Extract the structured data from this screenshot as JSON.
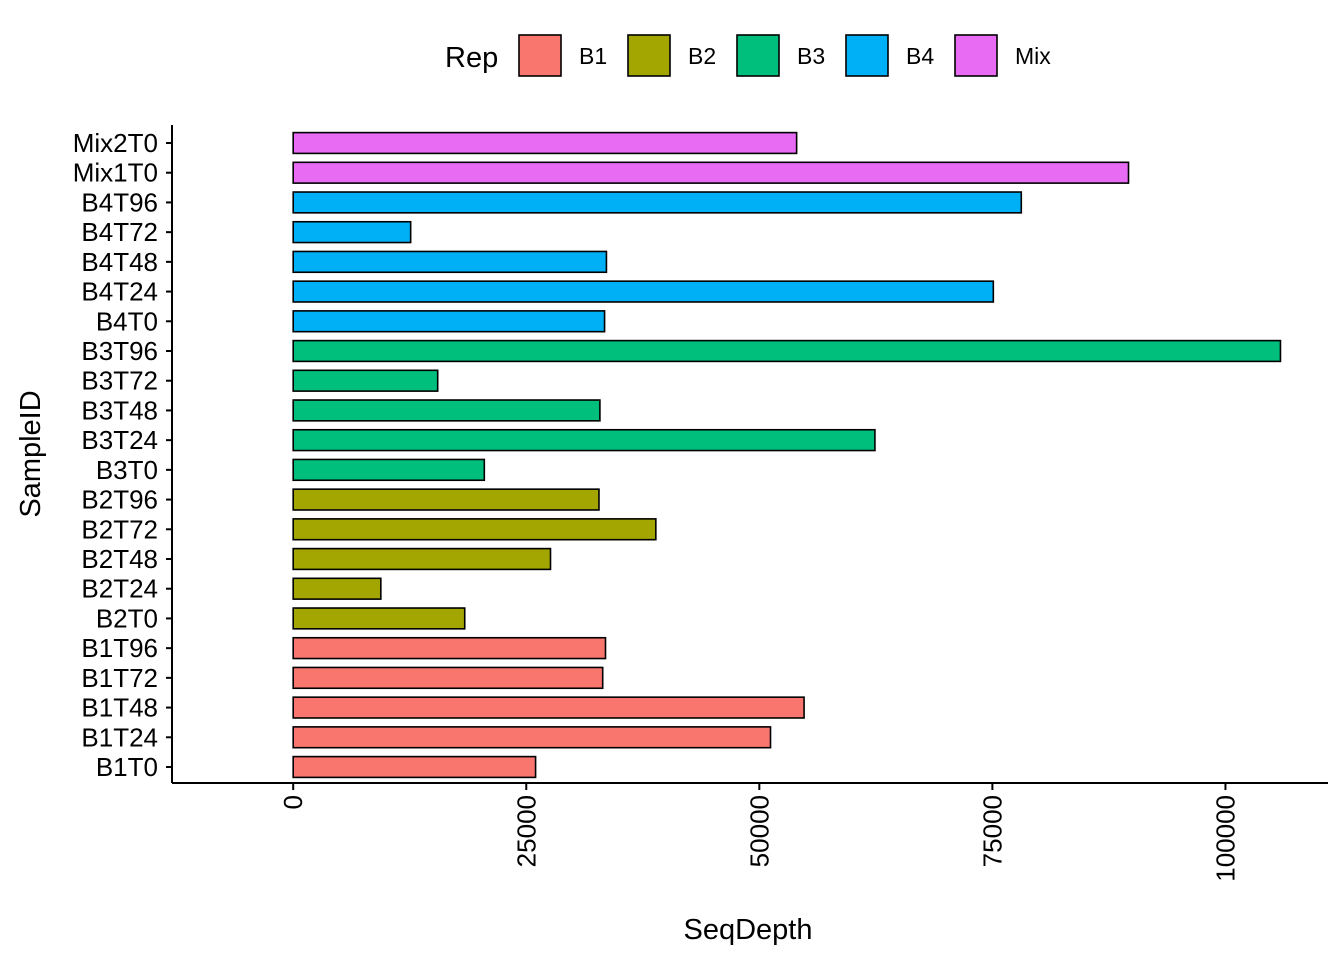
{
  "chart_data": {
    "type": "bar",
    "orientation": "horizontal",
    "title": "",
    "xlabel": "SeqDepth",
    "ylabel": "SampleID",
    "xlim": [
      -13000,
      111000
    ],
    "xticks": [
      0,
      25000,
      50000,
      75000,
      100000
    ],
    "xtick_labels": [
      "0",
      "25000",
      "50000",
      "75000",
      "100000"
    ],
    "grid": false,
    "legend": {
      "title": "Rep",
      "position": "top",
      "entries": [
        {
          "name": "B1",
          "color": "#F8766D"
        },
        {
          "name": "B2",
          "color": "#A3A500"
        },
        {
          "name": "B3",
          "color": "#00BF7D"
        },
        {
          "name": "B4",
          "color": "#00B0F6"
        },
        {
          "name": "Mix",
          "color": "#E76BF3"
        }
      ]
    },
    "categories": [
      "B1T0",
      "B1T24",
      "B1T48",
      "B1T72",
      "B1T96",
      "B2T0",
      "B2T24",
      "B2T48",
      "B2T72",
      "B2T96",
      "B3T0",
      "B3T24",
      "B3T48",
      "B3T72",
      "B3T96",
      "B4T0",
      "B4T24",
      "B4T48",
      "B4T72",
      "B4T96",
      "Mix1T0",
      "Mix2T0"
    ],
    "values": [
      26000,
      51200,
      54800,
      33200,
      33500,
      18400,
      9400,
      27600,
      38900,
      32800,
      20500,
      62400,
      32900,
      15500,
      105900,
      33400,
      75100,
      33600,
      12600,
      78100,
      89600,
      54000
    ],
    "groups": [
      "B1",
      "B1",
      "B1",
      "B1",
      "B1",
      "B2",
      "B2",
      "B2",
      "B2",
      "B2",
      "B3",
      "B3",
      "B3",
      "B3",
      "B3",
      "B4",
      "B4",
      "B4",
      "B4",
      "B4",
      "Mix",
      "Mix"
    ]
  }
}
